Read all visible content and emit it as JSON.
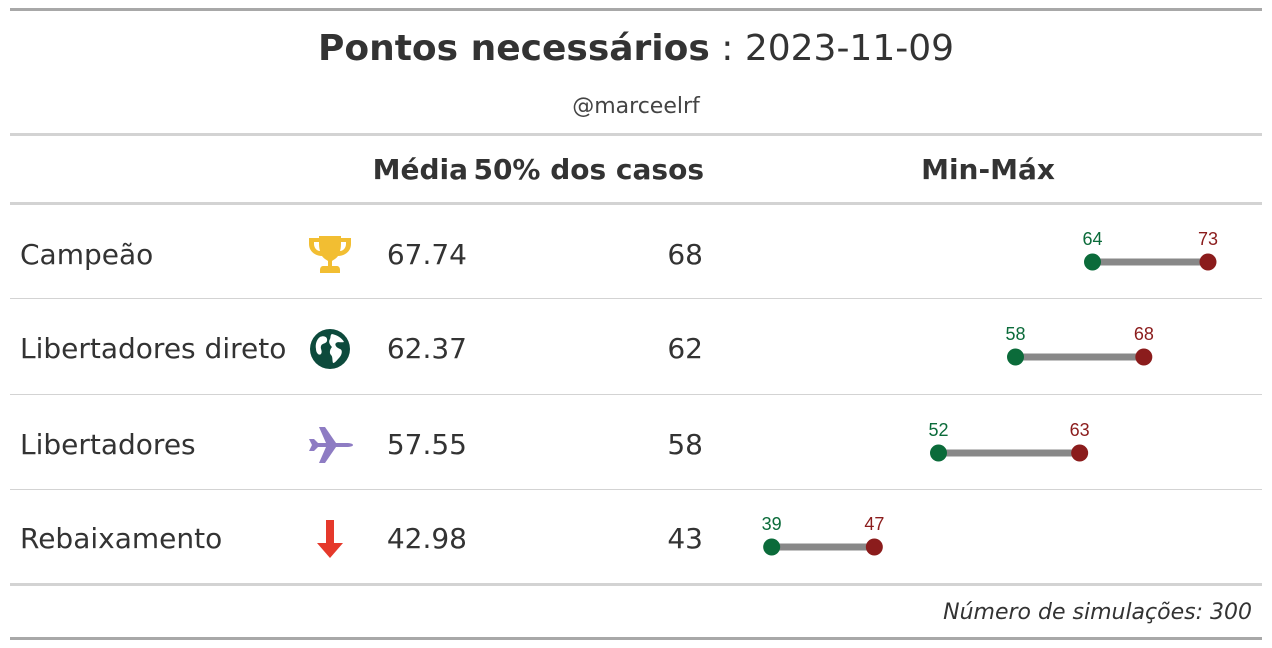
{
  "title": {
    "bold": "Pontos necessários",
    "rest": " : 2023-11-09"
  },
  "subtitle": "@marceelrf",
  "headers": {
    "media": "Média",
    "p50": "50% dos casos",
    "minmax": "Min-Máx"
  },
  "footnote": "Número de simulações: 300",
  "colors": {
    "min": "#0b6b3a",
    "max": "#8b1c1c",
    "bar": "#888888"
  },
  "rows": [
    {
      "label": "Campeão",
      "icon": "trophy-icon",
      "icon_color": "#f2be32",
      "media": "67.74",
      "p50": "68"
    },
    {
      "label": "Libertadores direto",
      "icon": "globe-icon",
      "icon_color": "#0d4a3c",
      "media": "62.37",
      "p50": "62"
    },
    {
      "label": "Libertadores",
      "icon": "plane-icon",
      "icon_color": "#8e7cc3",
      "media": "57.55",
      "p50": "58"
    },
    {
      "label": "Rebaixamento",
      "icon": "arrow-down-icon",
      "icon_color": "#e5392b",
      "media": "42.98",
      "p50": "43"
    }
  ],
  "chart_data": {
    "type": "dumbbell",
    "categories": [
      "Campeão",
      "Libertadores direto",
      "Libertadores",
      "Rebaixamento"
    ],
    "min": [
      64,
      58,
      52,
      39
    ],
    "max": [
      73,
      68,
      63,
      47
    ],
    "xlim": [
      37,
      73
    ]
  }
}
